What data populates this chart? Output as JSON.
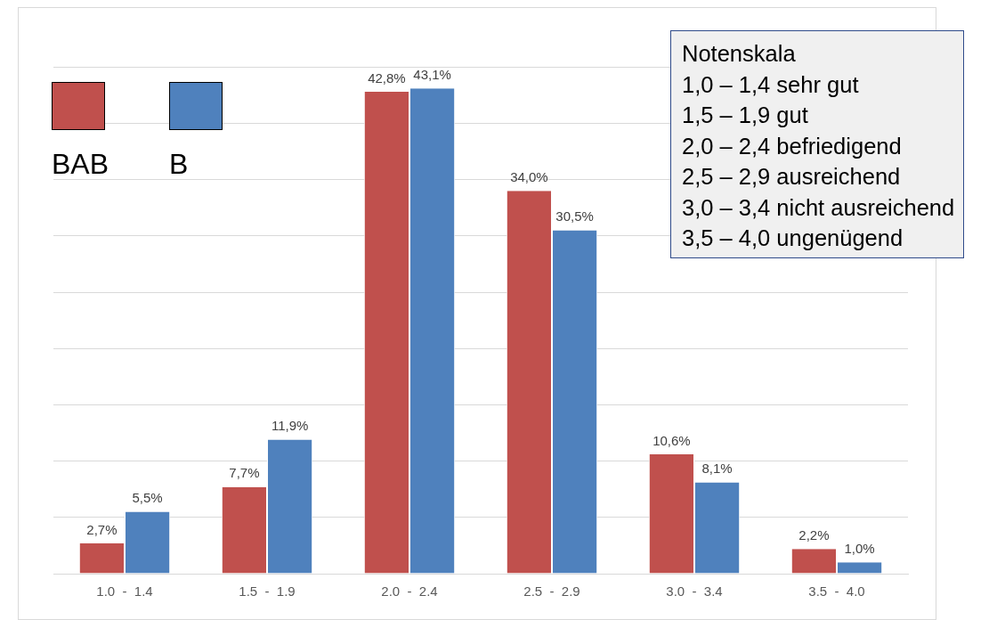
{
  "chart_data": {
    "type": "bar",
    "categories": [
      "1.0  -  1.4",
      "1.5  -  1.9",
      "2.0  -  2.4",
      "2.5  -  2.9",
      "3.0  -  3.4",
      "3.5  -  4.0"
    ],
    "series": [
      {
        "name": "BAB",
        "color": "#c0504d",
        "values": [
          2.7,
          7.7,
          42.8,
          34.0,
          10.6,
          2.2
        ],
        "value_labels": [
          "2,7%",
          "7,7%",
          "42,8%",
          "34,0%",
          "10,6%",
          "2,2%"
        ]
      },
      {
        "name": "B",
        "color": "#4f81bd",
        "values": [
          5.5,
          11.9,
          43.1,
          30.5,
          8.1,
          1.0
        ],
        "value_labels": [
          "5,5%",
          "11,9%",
          "43,1%",
          "30,5%",
          "8,1%",
          "1,0%"
        ]
      }
    ],
    "ylim": [
      0,
      50
    ],
    "yticks": [
      {
        "value": 0,
        "label": null
      },
      {
        "value": 5,
        "label": null
      },
      {
        "value": 10,
        "label": null
      },
      {
        "value": 15,
        "label": null
      },
      {
        "value": 20,
        "label": null
      },
      {
        "value": 25,
        "label": null
      },
      {
        "value": 30,
        "label": null
      },
      {
        "value": 35,
        "label": null
      },
      {
        "value": 40,
        "label": null
      },
      {
        "value": 45,
        "label": null
      }
    ],
    "tick_labels": "x",
    "grid": "y",
    "legend": "top left",
    "annotations": [
      "Notenskala\n1,0 – 1,4 sehr gut\n1,5 – 1,9 gut\n2,0 – 2,4 befriedigend\n2,5 – 2,9 ausreichend\n3,0 – 3,4 nicht ausreichend\n3,5 – 4,0 ungenügend"
    ]
  }
}
